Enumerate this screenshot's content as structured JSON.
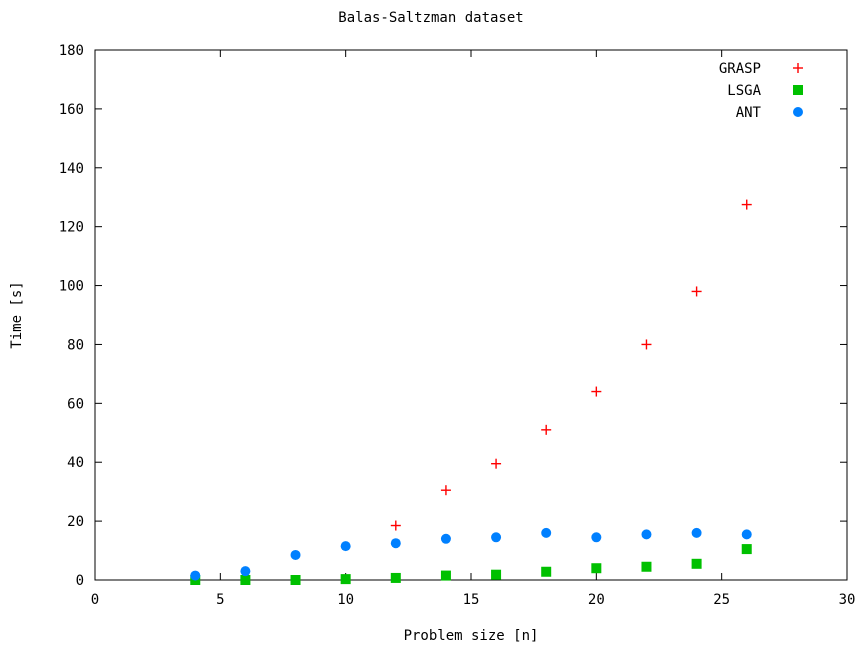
{
  "chart_data": {
    "type": "scatter",
    "title": "Balas-Saltzman dataset",
    "xlabel": "Problem size [n]",
    "ylabel": "Time [s]",
    "xlim": [
      0,
      30
    ],
    "ylim": [
      0,
      180
    ],
    "xticks": [
      0,
      5,
      10,
      15,
      20,
      25,
      30
    ],
    "yticks": [
      0,
      20,
      40,
      60,
      80,
      100,
      120,
      140,
      160,
      180
    ],
    "grid": false,
    "legend_position": "top-right",
    "series": [
      {
        "name": "GRASP",
        "marker": "plus",
        "color": "#ff0000",
        "points": [
          [
            12,
            18.5
          ],
          [
            14,
            30.5
          ],
          [
            16,
            39.5
          ],
          [
            18,
            51
          ],
          [
            20,
            64
          ],
          [
            22,
            80
          ],
          [
            24,
            98
          ],
          [
            26,
            127.5
          ]
        ]
      },
      {
        "name": "LSGA",
        "marker": "square",
        "color": "#00c000",
        "points": [
          [
            4,
            0
          ],
          [
            6,
            0
          ],
          [
            8,
            0
          ],
          [
            10,
            0.3
          ],
          [
            12,
            0.7
          ],
          [
            14,
            1.5
          ],
          [
            16,
            1.8
          ],
          [
            18,
            2.8
          ],
          [
            20,
            4
          ],
          [
            22,
            4.5
          ],
          [
            24,
            5.5
          ],
          [
            26,
            10.5
          ]
        ]
      },
      {
        "name": "ANT",
        "marker": "circle",
        "color": "#0080ff",
        "points": [
          [
            4,
            1.5
          ],
          [
            6,
            3
          ],
          [
            8,
            8.5
          ],
          [
            10,
            11.5
          ],
          [
            12,
            12.5
          ],
          [
            14,
            14
          ],
          [
            16,
            14.5
          ],
          [
            18,
            16
          ],
          [
            20,
            14.5
          ],
          [
            22,
            15.5
          ],
          [
            24,
            16
          ],
          [
            26,
            15.5
          ]
        ]
      }
    ]
  }
}
